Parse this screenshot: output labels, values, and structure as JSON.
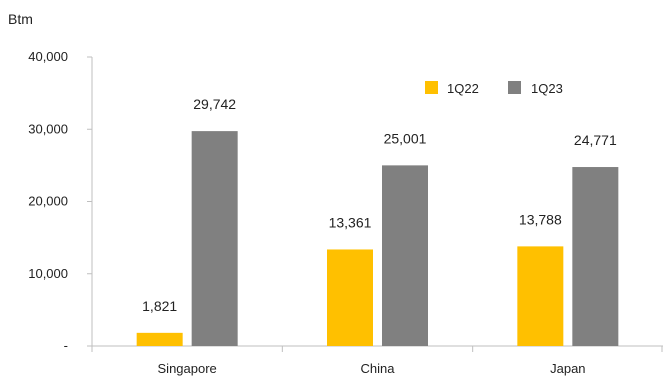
{
  "chart_data": {
    "type": "bar",
    "unit_label": "Btm",
    "categories": [
      "Singapore",
      "China",
      "Japan"
    ],
    "series": [
      {
        "name": "1Q22",
        "color": "#FFC000",
        "values": [
          1821,
          13361,
          13788
        ],
        "labels": [
          "1,821",
          "13,361",
          "13,788"
        ]
      },
      {
        "name": "1Q23",
        "color": "#808080",
        "values": [
          29742,
          25001,
          24771
        ],
        "labels": [
          "29,742",
          "25,001",
          "24,771"
        ]
      }
    ],
    "ylim": [
      0,
      40000
    ],
    "yticks": [
      0,
      10000,
      20000,
      30000,
      40000
    ],
    "ytick_labels": [
      "-",
      "10,000",
      "20,000",
      "30,000",
      "40,000"
    ],
    "legend_position": "top-right",
    "grid": false
  }
}
